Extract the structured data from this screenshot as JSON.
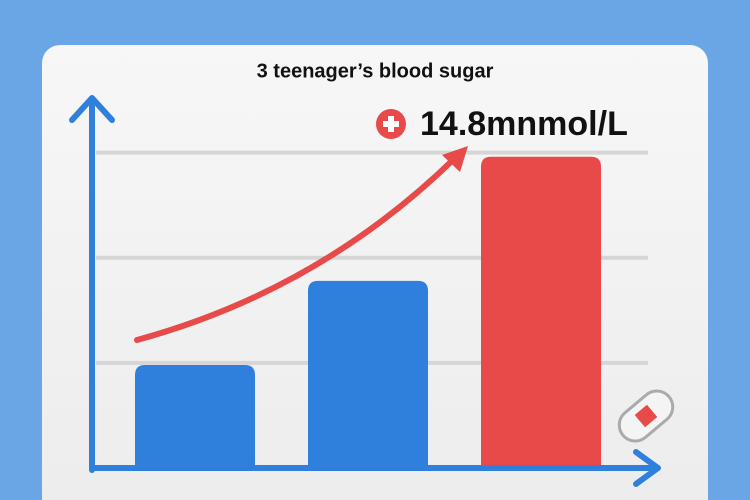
{
  "chart_data": {
    "type": "bar",
    "title": "3 teenager’s blood sugar",
    "categories": [
      null,
      null,
      null
    ],
    "values": [
      4.9,
      8.9,
      14.8
    ],
    "value_labels": [
      null,
      null,
      "14.8mnmol/L"
    ],
    "colors": [
      "#2f80dd",
      "#2f80dd",
      "#e84a4a"
    ],
    "ylim": [
      0,
      17.5
    ],
    "yticks": [
      5,
      10,
      15
    ],
    "grid": true
  }
}
